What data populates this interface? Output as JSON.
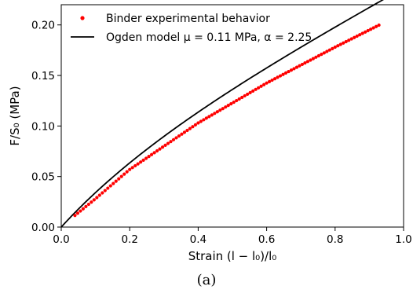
{
  "chart_data": {
    "type": "scatter",
    "x_range": [
      0.0,
      1.0
    ],
    "y_range": [
      0.0,
      0.22
    ],
    "x_ticks": [
      "0.0",
      "0.2",
      "0.4",
      "0.6",
      "0.8",
      "1.0"
    ],
    "y_ticks": [
      "0.00",
      "0.05",
      "0.10",
      "0.15",
      "0.20"
    ],
    "xlabel": "Strain (l − l₀)/l₀",
    "ylabel": "F/S₀ (MPa)",
    "grid": false,
    "legend_position": "top-left",
    "series": [
      {
        "name": "Binder experimental behavior",
        "kind": "scatter",
        "color": "#ff0000",
        "x_start": 0.04,
        "x_end": 0.935,
        "x_step": 0.008,
        "sample_points": [
          [
            0.04,
            0.0115
          ],
          [
            0.1,
            0.028
          ],
          [
            0.2,
            0.057
          ],
          [
            0.4,
            0.103
          ],
          [
            0.6,
            0.1425
          ],
          [
            0.8,
            0.178
          ],
          [
            0.935,
            0.201
          ]
        ]
      },
      {
        "name": "Ogden model μ = 0.11 MPa, α = 2.25",
        "kind": "line",
        "color": "#000000",
        "model": "ogden_uniaxial",
        "mu": 0.11,
        "alpha": 2.25
      }
    ]
  },
  "caption": "(a)"
}
